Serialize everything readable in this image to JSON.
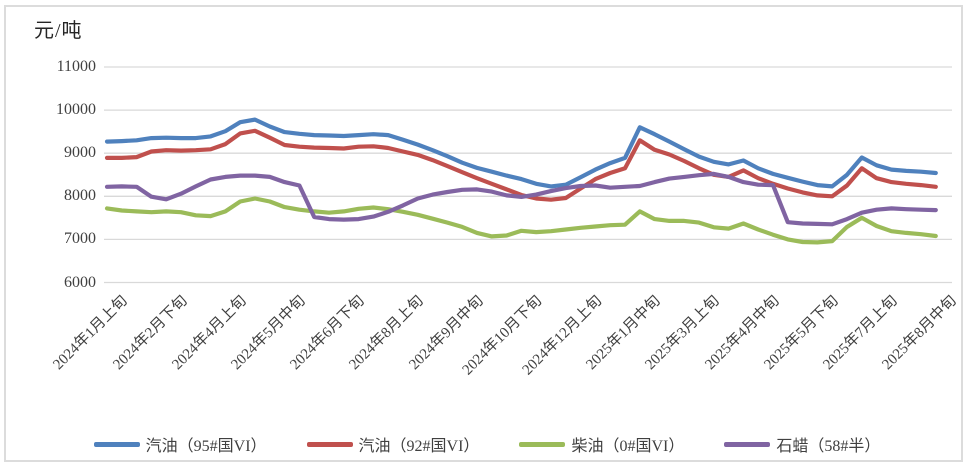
{
  "chart": {
    "unit_label": "元/吨"
  },
  "chart_data": {
    "type": "line",
    "title": "",
    "ylabel": "元/吨",
    "xlabel": "",
    "ylim": [
      6000,
      11000
    ],
    "y_ticks": [
      6000,
      7000,
      8000,
      9000,
      10000,
      11000
    ],
    "grid": "horizontal",
    "legend_position": "bottom",
    "n_points": 57,
    "x_tick_indices": [
      0,
      4,
      8,
      12,
      16,
      20,
      24,
      28,
      32,
      36,
      40,
      44,
      48,
      52,
      56
    ],
    "x_tick_labels": [
      "2024年1月上旬",
      "2024年2月下旬",
      "2024年4月上旬",
      "2024年5月中旬",
      "2024年6月下旬",
      "2024年8月上旬",
      "2024年9月中旬",
      "2024年10月下旬",
      "2024年12月上旬",
      "2025年1月中旬",
      "2025年3月上旬",
      "2025年4月中旬",
      "2025年5月下旬",
      "2025年7月上旬",
      "2025年8月中旬"
    ],
    "series": [
      {
        "name": "汽油（95#国VI）",
        "color": "#4F81BD",
        "values": [
          9270,
          9280,
          9300,
          9350,
          9360,
          9350,
          9350,
          9390,
          9510,
          9720,
          9780,
          9620,
          9490,
          9450,
          9420,
          9410,
          9400,
          9420,
          9440,
          9420,
          9310,
          9200,
          9070,
          8930,
          8780,
          8660,
          8570,
          8480,
          8400,
          8290,
          8230,
          8270,
          8440,
          8620,
          8770,
          8890,
          9600,
          9440,
          9270,
          9090,
          8920,
          8800,
          8740,
          8830,
          8650,
          8520,
          8430,
          8340,
          8260,
          8230,
          8500,
          8900,
          8720,
          8620,
          8590,
          8570,
          8540
        ]
      },
      {
        "name": "汽油（92#国VI）",
        "color": "#C0504D",
        "values": [
          8890,
          8890,
          8910,
          9040,
          9070,
          9060,
          9070,
          9090,
          9210,
          9460,
          9520,
          9360,
          9190,
          9150,
          9130,
          9120,
          9110,
          9150,
          9160,
          9120,
          9040,
          8960,
          8840,
          8700,
          8560,
          8420,
          8290,
          8160,
          8030,
          7950,
          7920,
          7960,
          8180,
          8400,
          8540,
          8650,
          9300,
          9080,
          8970,
          8820,
          8650,
          8500,
          8450,
          8600,
          8420,
          8290,
          8180,
          8090,
          8020,
          8000,
          8250,
          8650,
          8420,
          8330,
          8290,
          8260,
          8220
        ]
      },
      {
        "name": "柴油（0#国VI）",
        "color": "#9BBB59",
        "values": [
          7720,
          7670,
          7650,
          7630,
          7650,
          7630,
          7560,
          7540,
          7650,
          7880,
          7950,
          7880,
          7750,
          7690,
          7650,
          7620,
          7650,
          7710,
          7740,
          7700,
          7640,
          7570,
          7480,
          7390,
          7290,
          7150,
          7070,
          7090,
          7200,
          7170,
          7190,
          7230,
          7270,
          7300,
          7330,
          7340,
          7650,
          7470,
          7430,
          7430,
          7390,
          7280,
          7250,
          7370,
          7230,
          7110,
          7000,
          6940,
          6930,
          6960,
          7290,
          7500,
          7310,
          7190,
          7150,
          7120,
          7080
        ]
      },
      {
        "name": "石蜡（58#半）",
        "color": "#8064A2",
        "values": [
          8220,
          8230,
          8220,
          7990,
          7930,
          8060,
          8230,
          8390,
          8450,
          8480,
          8480,
          8450,
          8330,
          8250,
          7520,
          7470,
          7460,
          7470,
          7530,
          7640,
          7790,
          7950,
          8040,
          8100,
          8150,
          8160,
          8110,
          8020,
          7985,
          8040,
          8120,
          8190,
          8240,
          8250,
          8200,
          8220,
          8240,
          8330,
          8410,
          8450,
          8490,
          8520,
          8450,
          8330,
          8270,
          8260,
          7400,
          7370,
          7360,
          7350,
          7470,
          7620,
          7690,
          7720,
          7700,
          7690,
          7680
        ]
      }
    ]
  }
}
